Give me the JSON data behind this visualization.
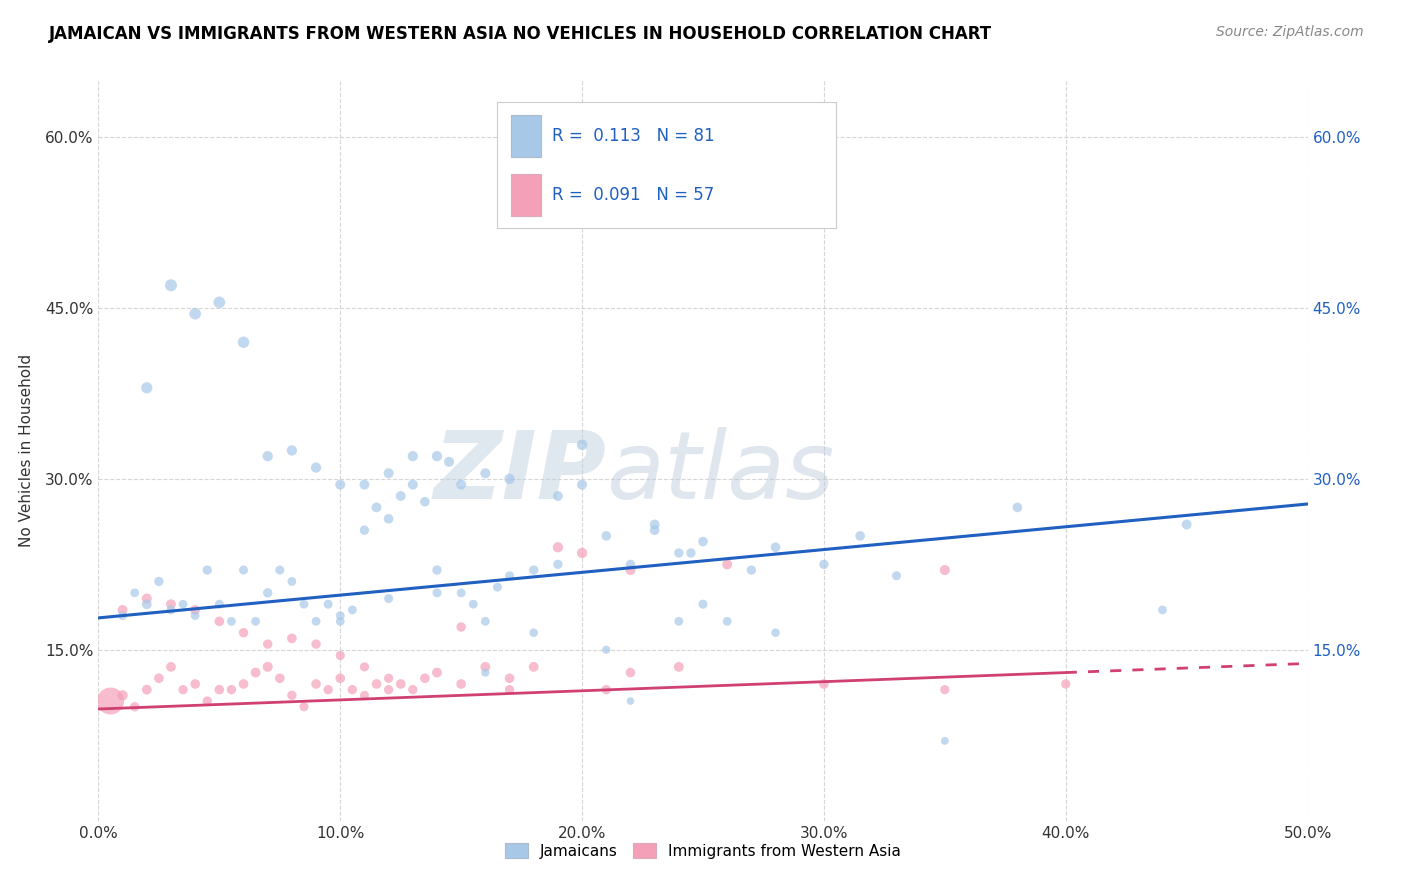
{
  "title": "JAMAICAN VS IMMIGRANTS FROM WESTERN ASIA NO VEHICLES IN HOUSEHOLD CORRELATION CHART",
  "source_text": "Source: ZipAtlas.com",
  "ylabel": "No Vehicles in Household",
  "xlabel": "",
  "xlim": [
    0.0,
    0.5
  ],
  "ylim": [
    0.0,
    0.65
  ],
  "xtick_labels": [
    "0.0%",
    "10.0%",
    "20.0%",
    "30.0%",
    "40.0%",
    "50.0%"
  ],
  "xtick_values": [
    0.0,
    0.1,
    0.2,
    0.3,
    0.4,
    0.5
  ],
  "ytick_labels": [
    "15.0%",
    "30.0%",
    "45.0%",
    "60.0%"
  ],
  "ytick_values": [
    0.15,
    0.3,
    0.45,
    0.6
  ],
  "legend_items": [
    "Jamaicans",
    "Immigrants from Western Asia"
  ],
  "R_blue": 0.113,
  "N_blue": 81,
  "R_pink": 0.091,
  "N_pink": 57,
  "color_blue": "#A8C8E8",
  "color_pink": "#F4A0B8",
  "line_color_blue": "#2060C0",
  "line_color_pink": "#D04070",
  "watermark_zip": "ZIP",
  "watermark_atlas": "atlas",
  "title_fontsize": 12,
  "source_fontsize": 10,
  "blue_line_x0": 0.0,
  "blue_line_y0": 0.178,
  "blue_line_x1": 0.5,
  "blue_line_y1": 0.278,
  "pink_line_x0": 0.0,
  "pink_line_y0": 0.098,
  "pink_line_x1": 0.5,
  "pink_line_y1": 0.138,
  "blue_scatter_x": [
    0.01,
    0.015,
    0.02,
    0.025,
    0.03,
    0.035,
    0.04,
    0.045,
    0.05,
    0.055,
    0.06,
    0.065,
    0.07,
    0.075,
    0.08,
    0.085,
    0.09,
    0.095,
    0.1,
    0.105,
    0.11,
    0.115,
    0.12,
    0.125,
    0.13,
    0.135,
    0.14,
    0.145,
    0.15,
    0.155,
    0.16,
    0.165,
    0.17,
    0.18,
    0.19,
    0.2,
    0.21,
    0.22,
    0.23,
    0.24,
    0.245,
    0.25,
    0.26,
    0.27,
    0.28,
    0.3,
    0.315,
    0.33,
    0.38,
    0.44,
    0.02,
    0.03,
    0.04,
    0.05,
    0.06,
    0.07,
    0.08,
    0.09,
    0.1,
    0.11,
    0.12,
    0.13,
    0.14,
    0.15,
    0.16,
    0.17,
    0.18,
    0.19,
    0.2,
    0.21,
    0.22,
    0.23,
    0.24,
    0.25,
    0.1,
    0.12,
    0.14,
    0.16,
    0.28,
    0.35,
    0.45
  ],
  "blue_scatter_y": [
    0.18,
    0.2,
    0.19,
    0.21,
    0.185,
    0.19,
    0.18,
    0.22,
    0.19,
    0.175,
    0.22,
    0.175,
    0.2,
    0.22,
    0.21,
    0.19,
    0.175,
    0.19,
    0.175,
    0.185,
    0.255,
    0.275,
    0.265,
    0.285,
    0.295,
    0.28,
    0.32,
    0.315,
    0.2,
    0.19,
    0.175,
    0.205,
    0.3,
    0.22,
    0.285,
    0.295,
    0.25,
    0.225,
    0.255,
    0.235,
    0.235,
    0.245,
    0.175,
    0.22,
    0.24,
    0.225,
    0.25,
    0.215,
    0.275,
    0.185,
    0.38,
    0.47,
    0.445,
    0.455,
    0.42,
    0.32,
    0.325,
    0.31,
    0.295,
    0.295,
    0.305,
    0.32,
    0.22,
    0.295,
    0.305,
    0.215,
    0.165,
    0.225,
    0.33,
    0.15,
    0.105,
    0.26,
    0.175,
    0.19,
    0.18,
    0.195,
    0.2,
    0.13,
    0.165,
    0.07,
    0.26
  ],
  "blue_scatter_sizes": [
    40,
    40,
    50,
    45,
    42,
    40,
    40,
    45,
    42,
    40,
    42,
    40,
    45,
    42,
    40,
    40,
    40,
    42,
    40,
    40,
    45,
    50,
    48,
    50,
    52,
    48,
    55,
    52,
    40,
    40,
    40,
    42,
    55,
    45,
    50,
    52,
    48,
    45,
    48,
    45,
    45,
    48,
    40,
    45,
    48,
    45,
    48,
    42,
    48,
    40,
    65,
    75,
    70,
    72,
    68,
    55,
    55,
    55,
    52,
    50,
    52,
    55,
    45,
    52,
    52,
    42,
    38,
    45,
    58,
    35,
    30,
    50,
    40,
    42,
    40,
    42,
    42,
    35,
    38,
    32,
    50
  ],
  "pink_scatter_x": [
    0.005,
    0.01,
    0.015,
    0.02,
    0.025,
    0.03,
    0.035,
    0.04,
    0.045,
    0.05,
    0.055,
    0.06,
    0.065,
    0.07,
    0.075,
    0.08,
    0.085,
    0.09,
    0.095,
    0.1,
    0.105,
    0.11,
    0.115,
    0.12,
    0.125,
    0.13,
    0.135,
    0.14,
    0.15,
    0.16,
    0.17,
    0.18,
    0.19,
    0.2,
    0.21,
    0.22,
    0.24,
    0.26,
    0.3,
    0.35,
    0.01,
    0.02,
    0.03,
    0.04,
    0.05,
    0.06,
    0.07,
    0.08,
    0.09,
    0.1,
    0.11,
    0.12,
    0.15,
    0.17,
    0.22,
    0.35,
    0.4
  ],
  "pink_scatter_y": [
    0.105,
    0.11,
    0.1,
    0.115,
    0.125,
    0.135,
    0.115,
    0.12,
    0.105,
    0.115,
    0.115,
    0.12,
    0.13,
    0.135,
    0.125,
    0.11,
    0.1,
    0.12,
    0.115,
    0.125,
    0.115,
    0.11,
    0.12,
    0.115,
    0.12,
    0.115,
    0.125,
    0.13,
    0.12,
    0.135,
    0.125,
    0.135,
    0.24,
    0.235,
    0.115,
    0.22,
    0.135,
    0.225,
    0.12,
    0.22,
    0.185,
    0.195,
    0.19,
    0.185,
    0.175,
    0.165,
    0.155,
    0.16,
    0.155,
    0.145,
    0.135,
    0.125,
    0.17,
    0.115,
    0.13,
    0.115,
    0.12
  ],
  "pink_scatter_sizes": [
    380,
    55,
    45,
    50,
    48,
    50,
    45,
    48,
    45,
    48,
    45,
    48,
    50,
    52,
    48,
    45,
    42,
    48,
    45,
    48,
    45,
    42,
    48,
    45,
    48,
    45,
    48,
    50,
    48,
    50,
    48,
    50,
    55,
    55,
    45,
    52,
    50,
    52,
    48,
    52,
    50,
    52,
    50,
    50,
    48,
    46,
    46,
    48,
    46,
    44,
    44,
    44,
    46,
    44,
    48,
    44,
    46
  ]
}
